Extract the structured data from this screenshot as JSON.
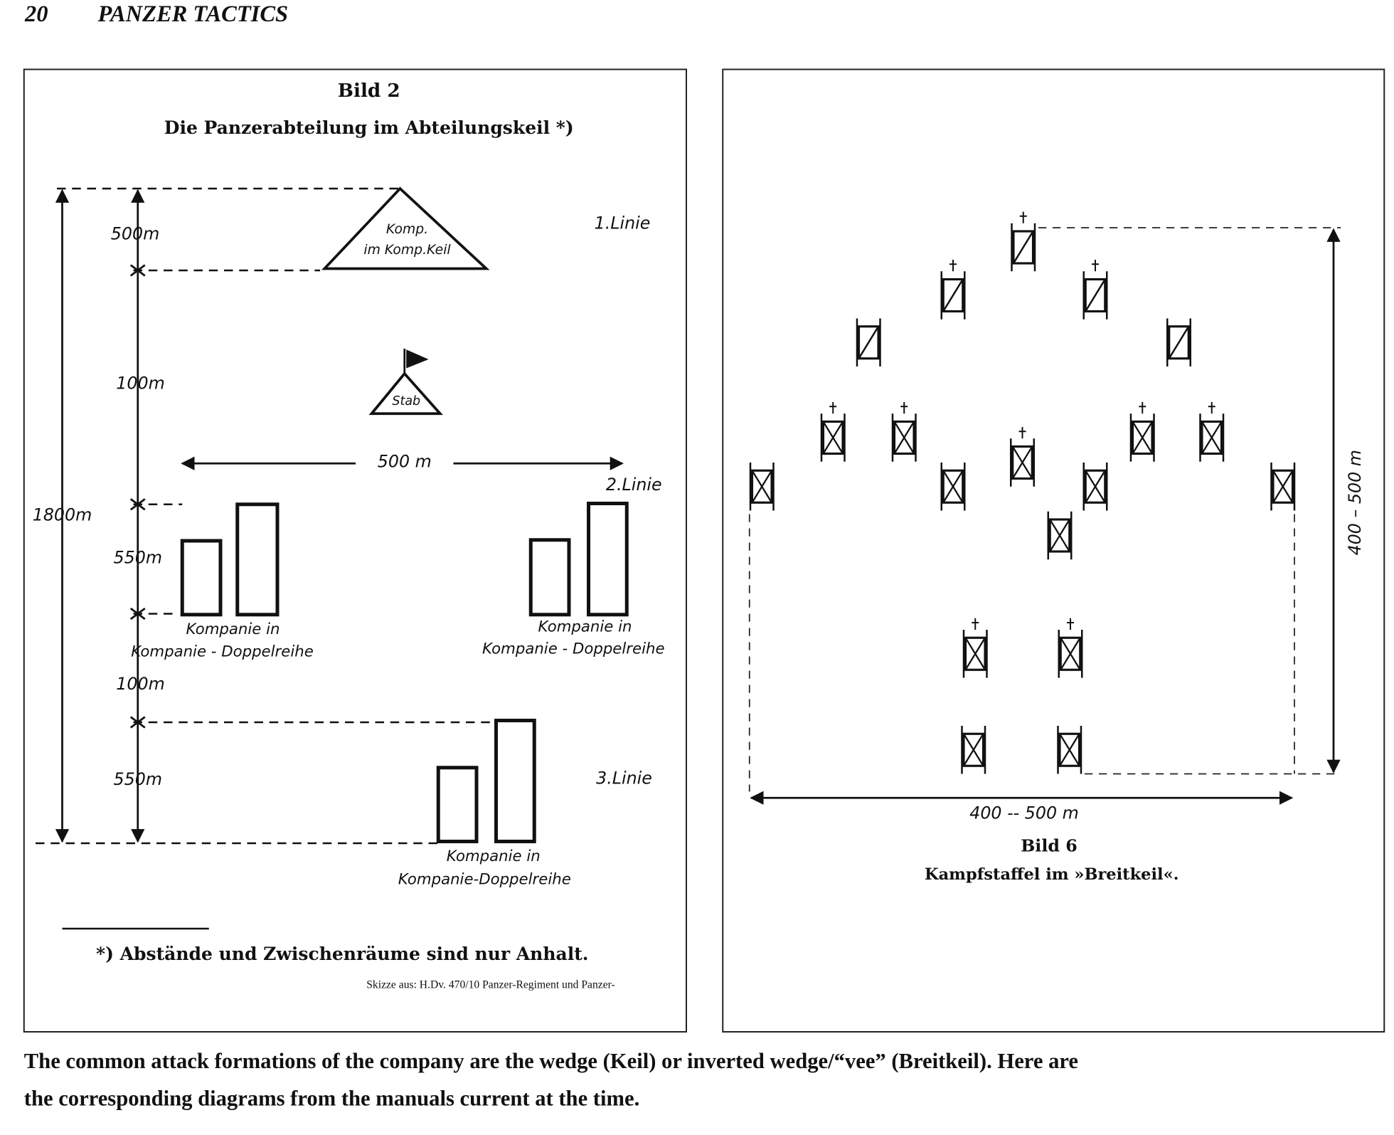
{
  "header": {
    "page_number": "20",
    "running_title": "PANZER TACTICS"
  },
  "figure_left": {
    "title": "Bild 2",
    "subtitle": "Die Panzerabteilung im Abteilungskeil *)",
    "labels": [
      "500m",
      "Komp.",
      "im Komp.Keil",
      "1.Linie",
      "100m",
      "Stab",
      "500 m",
      "2.Linie",
      "1800m",
      "550m",
      "Kompanie in",
      "Kompanie - Doppelreihe",
      "Kompanie in",
      "Kompanie - Doppelreihe",
      "100m",
      "550m",
      "3.Linie",
      "Kompanie in",
      "Kompanie-Doppelreihe"
    ],
    "footnote": "*) Abstände und Zwischenräume sind nur Anhalt.",
    "source": "Skizze aus: H.Dv. 470/10 Panzer-Regiment und Panzer-"
  },
  "figure_right": {
    "depth_label": "400 – 500 m",
    "width_label": "400 -- 500 m",
    "title": "Bild 6",
    "subtitle": "Kampfstaffel im »Breitkeil«."
  },
  "caption": [
    "The common attack formations of the company are the wedge (Keil) or inverted wedge/“vee” (Breitkeil). Here are",
    "the corresponding diagrams from the manuals current at the time."
  ]
}
